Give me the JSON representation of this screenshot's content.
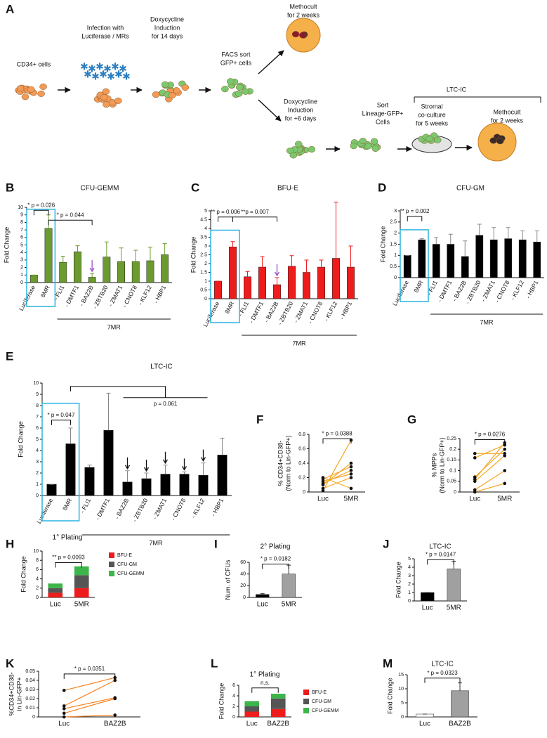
{
  "diagram": {
    "panel": "A",
    "steps": [
      [
        "CD34+ cells"
      ],
      [
        "Infection with",
        "Luciferase / MRs"
      ],
      [
        "Doxycycline",
        "Induction",
        "for 14 days"
      ],
      [
        "FACS sort",
        "GFP+ cells"
      ],
      [
        "Methocult",
        "for 2 weeks"
      ],
      [
        "Doxycycline",
        "Induction",
        "for +6 days"
      ],
      [
        "Sort",
        "Lineage-GFP+",
        "Cells"
      ],
      [
        "Stromal",
        "co-culture",
        "for 5 weeks"
      ],
      [
        "Methocult",
        "for 2 weeks"
      ]
    ],
    "group_label": "LTC-IC"
  },
  "chart_data": [
    {
      "type": "bar",
      "panel": "B",
      "title": "CFU-GEMM",
      "ylabel": "Fold Change",
      "categories": [
        "Luciferase",
        "8MR",
        "- FLI1",
        "- DMTF1",
        "- BAZ2B",
        "- ZBTB20",
        "- ZMAT1",
        "- CNOT8",
        "- KLF12",
        "- HBP1"
      ],
      "values": [
        1,
        7.2,
        2.7,
        4.1,
        0.7,
        3.4,
        2.8,
        2.8,
        2.9,
        3.7
      ],
      "errors": [
        0,
        1.8,
        0.8,
        0.8,
        0.5,
        2.0,
        1.8,
        1.5,
        1.8,
        1.5
      ],
      "color": "#6b9a2e",
      "ylim": [
        0,
        10
      ],
      "yticks": [
        0,
        1,
        2,
        3,
        4,
        5,
        6,
        7,
        8,
        9,
        10
      ],
      "annotations": [
        "* p = 0.026",
        "* p = 0.044"
      ],
      "group_label": "7MR"
    },
    {
      "type": "bar",
      "panel": "C",
      "title": "BFU-E",
      "ylabel": "Fold Change",
      "categories": [
        "Luciferase",
        "8MR",
        "- FLI1",
        "- DMTF1",
        "- BAZ2B",
        "- ZBTB20",
        "- ZMAT1",
        "- CNOT8",
        "- KLF12",
        "- HBP1"
      ],
      "values": [
        1,
        2.95,
        1.25,
        1.8,
        0.8,
        1.85,
        1.5,
        1.8,
        2.3,
        1.8
      ],
      "errors": [
        0,
        0.3,
        0.3,
        0.6,
        0.4,
        0.6,
        0.7,
        0.4,
        3.2,
        1.2
      ],
      "color": "#ee1c1c",
      "ylim": [
        0,
        5
      ],
      "yticks": [
        0,
        0.5,
        1,
        1.5,
        2,
        2.5,
        3,
        3.5,
        4,
        4.5,
        5
      ],
      "annotations": [
        "** p = 0.006",
        "**p = 0.007"
      ],
      "group_label": "7MR"
    },
    {
      "type": "bar",
      "panel": "D",
      "title": "CFU-GM",
      "ylabel": "Fold Change",
      "categories": [
        "Luciferase",
        "8MR",
        "- FLI1",
        "- DMTF1",
        "- BAZ2B",
        "- ZBTB20",
        "- ZMAT1",
        "- CNOT8",
        "- KLF12",
        "- HBP1"
      ],
      "values": [
        1,
        1.7,
        1.5,
        1.5,
        0.95,
        1.9,
        1.7,
        1.75,
        1.7,
        1.6
      ],
      "errors": [
        0,
        0.05,
        0.3,
        0.45,
        0.7,
        0.5,
        0.55,
        0.5,
        0.4,
        0.5
      ],
      "color": "#000000",
      "ylim": [
        0,
        3
      ],
      "yticks": [
        0,
        0.5,
        1,
        1.5,
        2,
        2.5,
        3
      ],
      "annotations": [
        "** p = 0.002"
      ],
      "group_label": "7MR"
    },
    {
      "type": "bar",
      "panel": "E",
      "title": "LTC-IC",
      "ylabel": "Fold Change",
      "categories": [
        "Luciferase",
        "8MR",
        "- FLI1",
        "- DMTF1",
        "- BAZ2B",
        "- ZBTB20",
        "- ZMAT1",
        "- CNOT8",
        "- KLF12",
        "- HBP1"
      ],
      "values": [
        1,
        4.6,
        2.5,
        5.8,
        1.2,
        1.5,
        1.9,
        1.9,
        1.8,
        3.6
      ],
      "errors": [
        0,
        1.4,
        0.2,
        3.3,
        1.0,
        0.5,
        0.8,
        0.2,
        1.1,
        1.5
      ],
      "color": "#000000",
      "ylim": [
        0,
        10
      ],
      "yticks": [
        0,
        1,
        2,
        3,
        4,
        5,
        6,
        7,
        8,
        9,
        10
      ],
      "annotations": [
        "* p = 0.047",
        "p = 0.061"
      ],
      "group_label": "7MR"
    },
    {
      "type": "paired",
      "panel": "F",
      "ylabel": [
        "% CD34+CD38-",
        "(Norm to Lin-GFP+)"
      ],
      "categories": [
        "Luc",
        "5MR"
      ],
      "values": [
        [
          0.02,
          0.05,
          0.1,
          0.12,
          0.15,
          0.18,
          0.2
        ],
        [
          0.72,
          0.2,
          0.4,
          0.3,
          0.25,
          0.35,
          0.05
        ]
      ],
      "line_color": "#f5a623",
      "marker_color": "#111111",
      "ylim": [
        0,
        0.8
      ],
      "yticks": [
        0,
        0.2,
        0.4,
        0.6,
        0.8
      ],
      "annotations": [
        "* p = 0.0388"
      ]
    },
    {
      "type": "paired",
      "panel": "G",
      "ylabel": [
        "% MPPs",
        "(Norm to Lin-GFP+)"
      ],
      "categories": [
        "Luc",
        "5MR"
      ],
      "values": [
        [
          0.18,
          0.16,
          0.06,
          0.07,
          0.05,
          0.01,
          0.0
        ],
        [
          0.18,
          0.22,
          0.23,
          0.2,
          0.17,
          0.1,
          0.04
        ]
      ],
      "line_color": "#f5a623",
      "marker_color": "#111111",
      "ylim": [
        0,
        0.25
      ],
      "yticks": [
        0,
        0.05,
        0.1,
        0.15,
        0.2,
        0.25
      ],
      "annotations": [
        "* p = 0.0276"
      ]
    },
    {
      "type": "stacked",
      "panel": "H",
      "title": "1° Plating",
      "ylabel": "Fold Change",
      "categories": [
        "Luc",
        "5MR"
      ],
      "series": [
        {
          "name": "BFU-E",
          "color": "#ee1c1c",
          "values": [
            1,
            2
          ]
        },
        {
          "name": "CFU-GM",
          "color": "#555555",
          "values": [
            1,
            2.8
          ]
        },
        {
          "name": "CFU-GEMM",
          "color": "#3cb54a",
          "values": [
            1,
            1.9
          ]
        }
      ],
      "ylim": [
        0,
        10
      ],
      "yticks": [
        0,
        2,
        4,
        6,
        8,
        10
      ],
      "annotations": [
        "** p = 0.0093"
      ]
    },
    {
      "type": "bar",
      "panel": "I",
      "title": "2° Plating",
      "ylabel": "Num. of CFUs",
      "categories": [
        "Luc",
        "5MR"
      ],
      "values": [
        5,
        40
      ],
      "errors": [
        1.5,
        15
      ],
      "colors": [
        "#000000",
        "#a0a0a0"
      ],
      "ylim": [
        0,
        60
      ],
      "yticks": [
        0,
        20,
        40,
        60
      ],
      "annotations": [
        "* p = 0.0182"
      ]
    },
    {
      "type": "bar",
      "panel": "J",
      "title": "LTC-IC",
      "ylabel": "Fold Change",
      "categories": [
        "Luc",
        "5MR"
      ],
      "values": [
        1,
        3.8
      ],
      "errors": [
        0,
        0.9
      ],
      "colors": [
        "#000000",
        "#a0a0a0"
      ],
      "ylim": [
        0,
        5
      ],
      "yticks": [
        0,
        1,
        2,
        3,
        4,
        5
      ],
      "annotations": [
        "* p = 0.0147"
      ]
    },
    {
      "type": "paired",
      "panel": "K",
      "ylabel": [
        "%CD34+CD38-",
        "in Lin-GFP+"
      ],
      "categories": [
        "Luc",
        "BAZ2B"
      ],
      "values": [
        [
          0.029,
          0.012,
          0.009,
          0.004,
          0.0
        ],
        [
          0.043,
          0.04,
          0.021,
          0.02,
          0.002
        ]
      ],
      "line_color": "#f58220",
      "marker_color": "#111111",
      "ylim": [
        0,
        0.05
      ],
      "yticks": [
        0,
        0.01,
        0.02,
        0.03,
        0.04,
        0.05
      ],
      "annotations": [
        "* p = 0.0351"
      ]
    },
    {
      "type": "stacked",
      "panel": "L",
      "title": "1° Plating",
      "ylabel": "Fold Change",
      "categories": [
        "Luc",
        "BAZ2B"
      ],
      "series": [
        {
          "name": "BFU-E",
          "color": "#ee1c1c",
          "values": [
            1,
            1.5
          ]
        },
        {
          "name": "CFU-GM",
          "color": "#555555",
          "values": [
            1,
            2.0
          ]
        },
        {
          "name": "CFU-GEMM",
          "color": "#3cb54a",
          "values": [
            1,
            0.9
          ]
        }
      ],
      "ylim": [
        0,
        6
      ],
      "yticks": [
        0,
        2,
        4,
        6
      ],
      "annotations": [
        "n.s."
      ]
    },
    {
      "type": "bar",
      "panel": "M",
      "title": "LTC-IC",
      "ylabel": "Fold Change",
      "categories": [
        "Luc",
        "BAZ2B"
      ],
      "values": [
        1,
        9.3
      ],
      "errors": [
        0,
        2.8
      ],
      "colors": [
        "#ffffff",
        "#a0a0a0"
      ],
      "ylim": [
        0,
        15
      ],
      "yticks": [
        0,
        5,
        10,
        15
      ],
      "annotations": [
        "* p = 0.0323"
      ]
    }
  ]
}
